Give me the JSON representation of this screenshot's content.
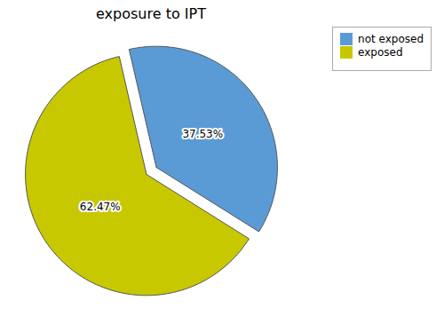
{
  "chart_data": {
    "type": "pie",
    "title": "exposure to IPT",
    "categories": [
      "not exposed",
      "exposed"
    ],
    "values": [
      37.53,
      62.47
    ],
    "value_labels": [
      "37.53%",
      "62.47%"
    ],
    "colors": [
      "#5b9bd5",
      "#c8c800"
    ],
    "data_labels": true,
    "legend": "upper right"
  }
}
